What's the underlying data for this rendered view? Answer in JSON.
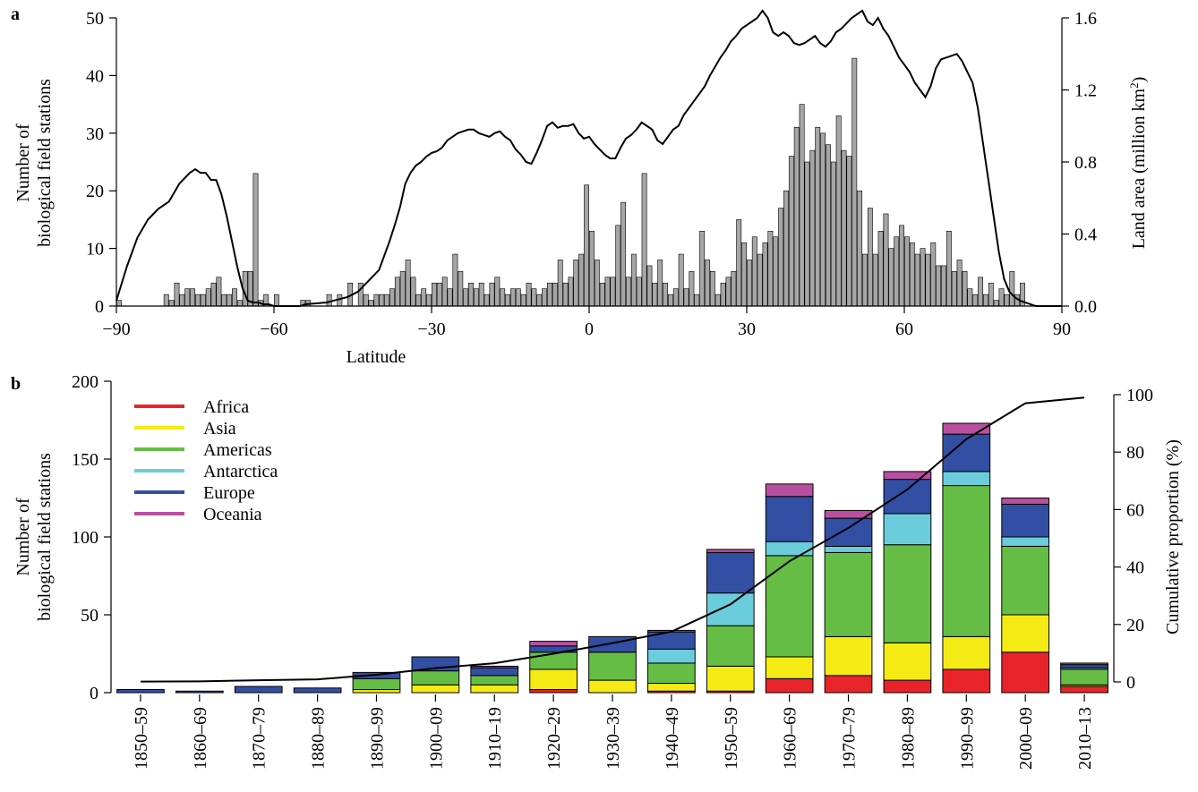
{
  "chart_data": [
    {
      "panel_label": "a",
      "type": "bar",
      "xlabel": "Latitude",
      "ylabel_lines": [
        "Number of",
        "biological field stations"
      ],
      "y2label": "Land area (million km",
      "y2label_sup": "2",
      "y2label_end": ")",
      "xlim": [
        -90,
        90
      ],
      "ylim": [
        0,
        50
      ],
      "y2lim": [
        0,
        1.6
      ],
      "x_ticks": [
        -90,
        -60,
        -30,
        0,
        30,
        60,
        90
      ],
      "x_tick_labels": [
        "−90",
        "−60",
        "−30",
        "0",
        "30",
        "60",
        "90"
      ],
      "y_ticks": [
        0,
        10,
        20,
        30,
        40,
        50
      ],
      "y_tick_labels": [
        "0",
        "10",
        "20",
        "30",
        "40",
        "50"
      ],
      "y2_ticks": [
        0.0,
        0.4,
        0.8,
        1.2,
        1.6
      ],
      "y2_tick_labels": [
        "0.0",
        "0.4",
        "0.8",
        "1.2",
        "1.6"
      ],
      "bar_color": "#a6a6a6",
      "bar_x": [
        -89.5,
        -80.5,
        -79.5,
        -78.5,
        -77.5,
        -76.5,
        -75.5,
        -74.5,
        -73.5,
        -72.5,
        -71.5,
        -70.5,
        -69.5,
        -68.5,
        -67.5,
        -66.5,
        -65.5,
        -64.5,
        -63.5,
        -62.5,
        -61.5,
        -59.5,
        -54.5,
        -53.5,
        -49.5,
        -47.5,
        -45.5,
        -43.5,
        -42.5,
        -41.5,
        -40.5,
        -39.5,
        -38.5,
        -37.5,
        -36.5,
        -35.5,
        -34.5,
        -33.5,
        -32.5,
        -31.5,
        -30.5,
        -29.5,
        -28.5,
        -27.5,
        -26.5,
        -25.5,
        -24.5,
        -23.5,
        -22.5,
        -21.5,
        -20.5,
        -19.5,
        -18.5,
        -17.5,
        -16.5,
        -15.5,
        -14.5,
        -13.5,
        -12.5,
        -11.5,
        -10.5,
        -9.5,
        -8.5,
        -7.5,
        -6.5,
        -5.5,
        -4.5,
        -3.5,
        -2.5,
        -1.5,
        -0.5,
        0.5,
        1.5,
        2.5,
        3.5,
        4.5,
        5.5,
        6.5,
        7.5,
        8.5,
        9.5,
        10.5,
        11.5,
        12.5,
        13.5,
        14.5,
        15.5,
        16.5,
        17.5,
        18.5,
        19.5,
        20.5,
        21.5,
        22.5,
        23.5,
        24.5,
        25.5,
        26.5,
        27.5,
        28.5,
        29.5,
        30.5,
        31.5,
        32.5,
        33.5,
        34.5,
        35.5,
        36.5,
        37.5,
        38.5,
        39.5,
        40.5,
        41.5,
        42.5,
        43.5,
        44.5,
        45.5,
        46.5,
        47.5,
        48.5,
        49.5,
        50.5,
        51.5,
        52.5,
        53.5,
        54.5,
        55.5,
        56.5,
        57.5,
        58.5,
        59.5,
        60.5,
        61.5,
        62.5,
        63.5,
        64.5,
        65.5,
        66.5,
        67.5,
        68.5,
        69.5,
        70.5,
        71.5,
        72.5,
        73.5,
        74.5,
        75.5,
        76.5,
        77.5,
        78.5,
        79.5,
        80.5,
        81.5,
        82.5
      ],
      "bar_values": [
        1,
        2,
        1,
        4,
        2,
        3,
        3,
        2,
        2,
        3,
        4,
        5,
        2,
        2,
        3,
        1,
        6,
        6,
        23,
        1,
        2,
        2,
        1,
        1,
        2,
        2,
        4,
        4,
        2,
        1,
        2,
        2,
        2,
        3,
        5,
        6,
        8,
        5,
        2,
        3,
        2,
        4,
        4,
        5,
        3,
        9,
        6,
        3,
        4,
        3,
        4,
        2,
        4,
        5,
        3,
        2,
        3,
        3,
        2,
        4,
        3,
        2,
        3,
        4,
        4,
        8,
        4,
        5,
        8,
        9,
        21,
        13,
        8,
        4,
        5,
        5,
        14,
        18,
        5,
        9,
        5,
        23,
        7,
        4,
        8,
        4,
        2,
        3,
        9,
        3,
        6,
        2,
        13,
        8,
        6,
        2,
        4,
        5,
        6,
        15,
        11,
        8,
        12,
        9,
        11,
        13,
        12,
        17,
        20,
        26,
        31,
        35,
        25,
        27,
        31,
        30,
        28,
        25,
        33,
        27,
        26,
        43,
        20,
        9,
        17,
        9,
        13,
        16,
        10,
        12,
        14,
        12,
        11,
        9,
        10,
        9,
        11,
        7,
        7,
        13,
        6,
        8,
        6,
        3,
        2,
        5,
        2,
        4,
        1,
        3,
        2,
        6,
        2,
        4,
        7,
        2
      ],
      "line_color": "#000000",
      "line_lat": [
        -90,
        -88,
        -86,
        -84,
        -82,
        -80,
        -78,
        -76,
        -75,
        -74,
        -73,
        -72,
        -71,
        -70,
        -69,
        -68,
        -67,
        -66,
        -65,
        -64,
        -63,
        -62,
        -61,
        -60,
        -59,
        -58,
        -57,
        -56,
        -55,
        -54,
        -50,
        -46,
        -44,
        -42,
        -40,
        -38,
        -37,
        -36,
        -35,
        -34,
        -33,
        -32,
        -31,
        -30,
        -29,
        -28,
        -27,
        -26,
        -25,
        -24,
        -23,
        -22,
        -21,
        -20,
        -19,
        -18,
        -17,
        -16,
        -15,
        -14,
        -13,
        -12,
        -11,
        -10,
        -9,
        -8,
        -7,
        -6,
        -5,
        -4,
        -3,
        -2,
        -1,
        0,
        1,
        2,
        3,
        4,
        5,
        6,
        7,
        8,
        9,
        10,
        11,
        12,
        13,
        14,
        15,
        16,
        17,
        18,
        19,
        20,
        21,
        22,
        23,
        24,
        25,
        26,
        27,
        28,
        29,
        30,
        31,
        32,
        33,
        34,
        35,
        36,
        37,
        38,
        39,
        40,
        41,
        42,
        43,
        44,
        45,
        46,
        47,
        48,
        49,
        50,
        51,
        52,
        53,
        54,
        55,
        56,
        57,
        58,
        59,
        60,
        61,
        62,
        63,
        64,
        65,
        66,
        67,
        68,
        69,
        70,
        71,
        72,
        73,
        74,
        75,
        76,
        77,
        78,
        79,
        80,
        81,
        82,
        83,
        84,
        85,
        86,
        87,
        88,
        89,
        90
      ],
      "line_values": [
        0.03,
        0.22,
        0.38,
        0.48,
        0.54,
        0.58,
        0.68,
        0.74,
        0.76,
        0.74,
        0.74,
        0.7,
        0.7,
        0.62,
        0.5,
        0.36,
        0.22,
        0.1,
        0.03,
        0.02,
        0.02,
        0.01,
        0.01,
        0.0,
        0.0,
        0.0,
        0.0,
        0.0,
        0.0,
        0.01,
        0.02,
        0.05,
        0.08,
        0.14,
        0.2,
        0.36,
        0.45,
        0.55,
        0.68,
        0.74,
        0.78,
        0.8,
        0.83,
        0.85,
        0.86,
        0.88,
        0.92,
        0.94,
        0.96,
        0.97,
        0.98,
        0.98,
        0.96,
        0.95,
        0.94,
        0.96,
        0.97,
        0.94,
        0.92,
        0.87,
        0.84,
        0.8,
        0.79,
        0.85,
        0.92,
        1.0,
        1.02,
        0.99,
        1.0,
        1.0,
        1.01,
        0.96,
        0.93,
        0.94,
        0.9,
        0.87,
        0.84,
        0.82,
        0.82,
        0.88,
        0.93,
        0.95,
        0.98,
        1.02,
        1.0,
        0.98,
        0.92,
        0.9,
        0.94,
        0.98,
        1.0,
        1.06,
        1.1,
        1.14,
        1.18,
        1.22,
        1.28,
        1.33,
        1.38,
        1.42,
        1.47,
        1.5,
        1.54,
        1.56,
        1.58,
        1.6,
        1.64,
        1.6,
        1.52,
        1.5,
        1.52,
        1.5,
        1.46,
        1.45,
        1.46,
        1.48,
        1.5,
        1.46,
        1.44,
        1.47,
        1.52,
        1.54,
        1.57,
        1.6,
        1.62,
        1.64,
        1.58,
        1.56,
        1.6,
        1.54,
        1.5,
        1.44,
        1.38,
        1.34,
        1.3,
        1.24,
        1.2,
        1.16,
        1.22,
        1.32,
        1.37,
        1.38,
        1.39,
        1.4,
        1.36,
        1.3,
        1.24,
        1.1,
        0.9,
        0.7,
        0.5,
        0.3,
        0.15,
        0.08,
        0.05,
        0.03,
        0.02,
        0.01,
        0.0,
        0.0,
        0.0,
        0.0,
        0.0,
        0.0
      ]
    },
    {
      "panel_label": "b",
      "type": "bar",
      "stacked": true,
      "ylabel_lines": [
        "Number of",
        "biological field stations"
      ],
      "y2label": "Cumulative proportion (%)",
      "ylim": [
        0,
        200
      ],
      "y2lim": [
        -5,
        100
      ],
      "y_ticks": [
        0,
        50,
        100,
        150,
        200
      ],
      "y_tick_labels": [
        "0",
        "50",
        "100",
        "150",
        "200"
      ],
      "y2_ticks": [
        0,
        20,
        40,
        60,
        80,
        100
      ],
      "y2_tick_labels": [
        "0",
        "20",
        "40",
        "60",
        "80",
        "100"
      ],
      "categories": [
        "1850–59",
        "1860–69",
        "1870–79",
        "1880–89",
        "1890–99",
        "1900–09",
        "1910–19",
        "1920–29",
        "1930–39",
        "1940–49",
        "1950–59",
        "1960–69",
        "1970–79",
        "1980–89",
        "1990–99",
        "2000–09",
        "2010–13"
      ],
      "series": [
        {
          "name": "Africa",
          "color": "#e8242a",
          "values": [
            0,
            0,
            0,
            0,
            0,
            0,
            0,
            2,
            0,
            1,
            1,
            9,
            11,
            8,
            15,
            26,
            4
          ]
        },
        {
          "name": "Asia",
          "color": "#f5eb14",
          "values": [
            0,
            0,
            0,
            0,
            2,
            5,
            5,
            13,
            8,
            5,
            16,
            14,
            25,
            24,
            21,
            24,
            1
          ]
        },
        {
          "name": "Americas",
          "color": "#66bd45",
          "values": [
            0,
            0,
            0,
            0,
            7,
            9,
            6,
            11,
            18,
            13,
            26,
            65,
            54,
            63,
            97,
            44,
            10
          ]
        },
        {
          "name": "Antarctica",
          "color": "#6bcddb",
          "values": [
            0,
            0,
            0,
            0,
            0,
            0,
            0,
            0,
            0,
            9,
            21,
            9,
            4,
            20,
            9,
            6,
            1
          ]
        },
        {
          "name": "Europe",
          "color": "#334fa3",
          "values": [
            2,
            1,
            4,
            3,
            4,
            9,
            5,
            4,
            10,
            11,
            26,
            29,
            18,
            22,
            24,
            21,
            2
          ]
        },
        {
          "name": "Oceania",
          "color": "#b9509f",
          "values": [
            0,
            0,
            0,
            0,
            0,
            0,
            1,
            3,
            0,
            1,
            2,
            8,
            5,
            5,
            7,
            4,
            1
          ]
        }
      ],
      "cumulative_proportion": [
        0.1,
        0.2,
        0.6,
        0.9,
        2.5,
        4.8,
        6.5,
        9.8,
        13.5,
        17.5,
        27.0,
        42.0,
        53.6,
        67.0,
        84.5,
        97.0,
        99.0
      ]
    }
  ]
}
